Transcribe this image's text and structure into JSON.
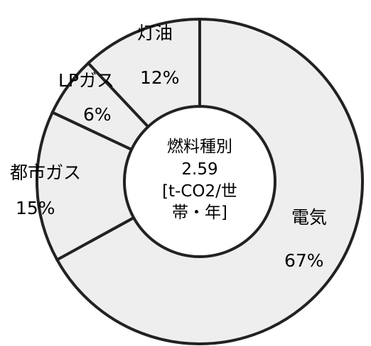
{
  "chart_data": {
    "type": "pie",
    "variant": "donut",
    "center_label": [
      "燃料種別",
      "2.59",
      "[t-CO2/世",
      "帯・年]"
    ],
    "slices": [
      {
        "label": "電気",
        "value": 67,
        "value_label": "67%"
      },
      {
        "label": "都市ガス",
        "value": 15,
        "value_label": "15%"
      },
      {
        "label": "LPガス",
        "value": 6,
        "value_label": "6%"
      },
      {
        "label": "灯油",
        "value": 12,
        "value_label": "12%"
      }
    ],
    "colors": {
      "fill": "#eeeeee",
      "stroke": "#222222",
      "hole": "#ffffff"
    }
  }
}
